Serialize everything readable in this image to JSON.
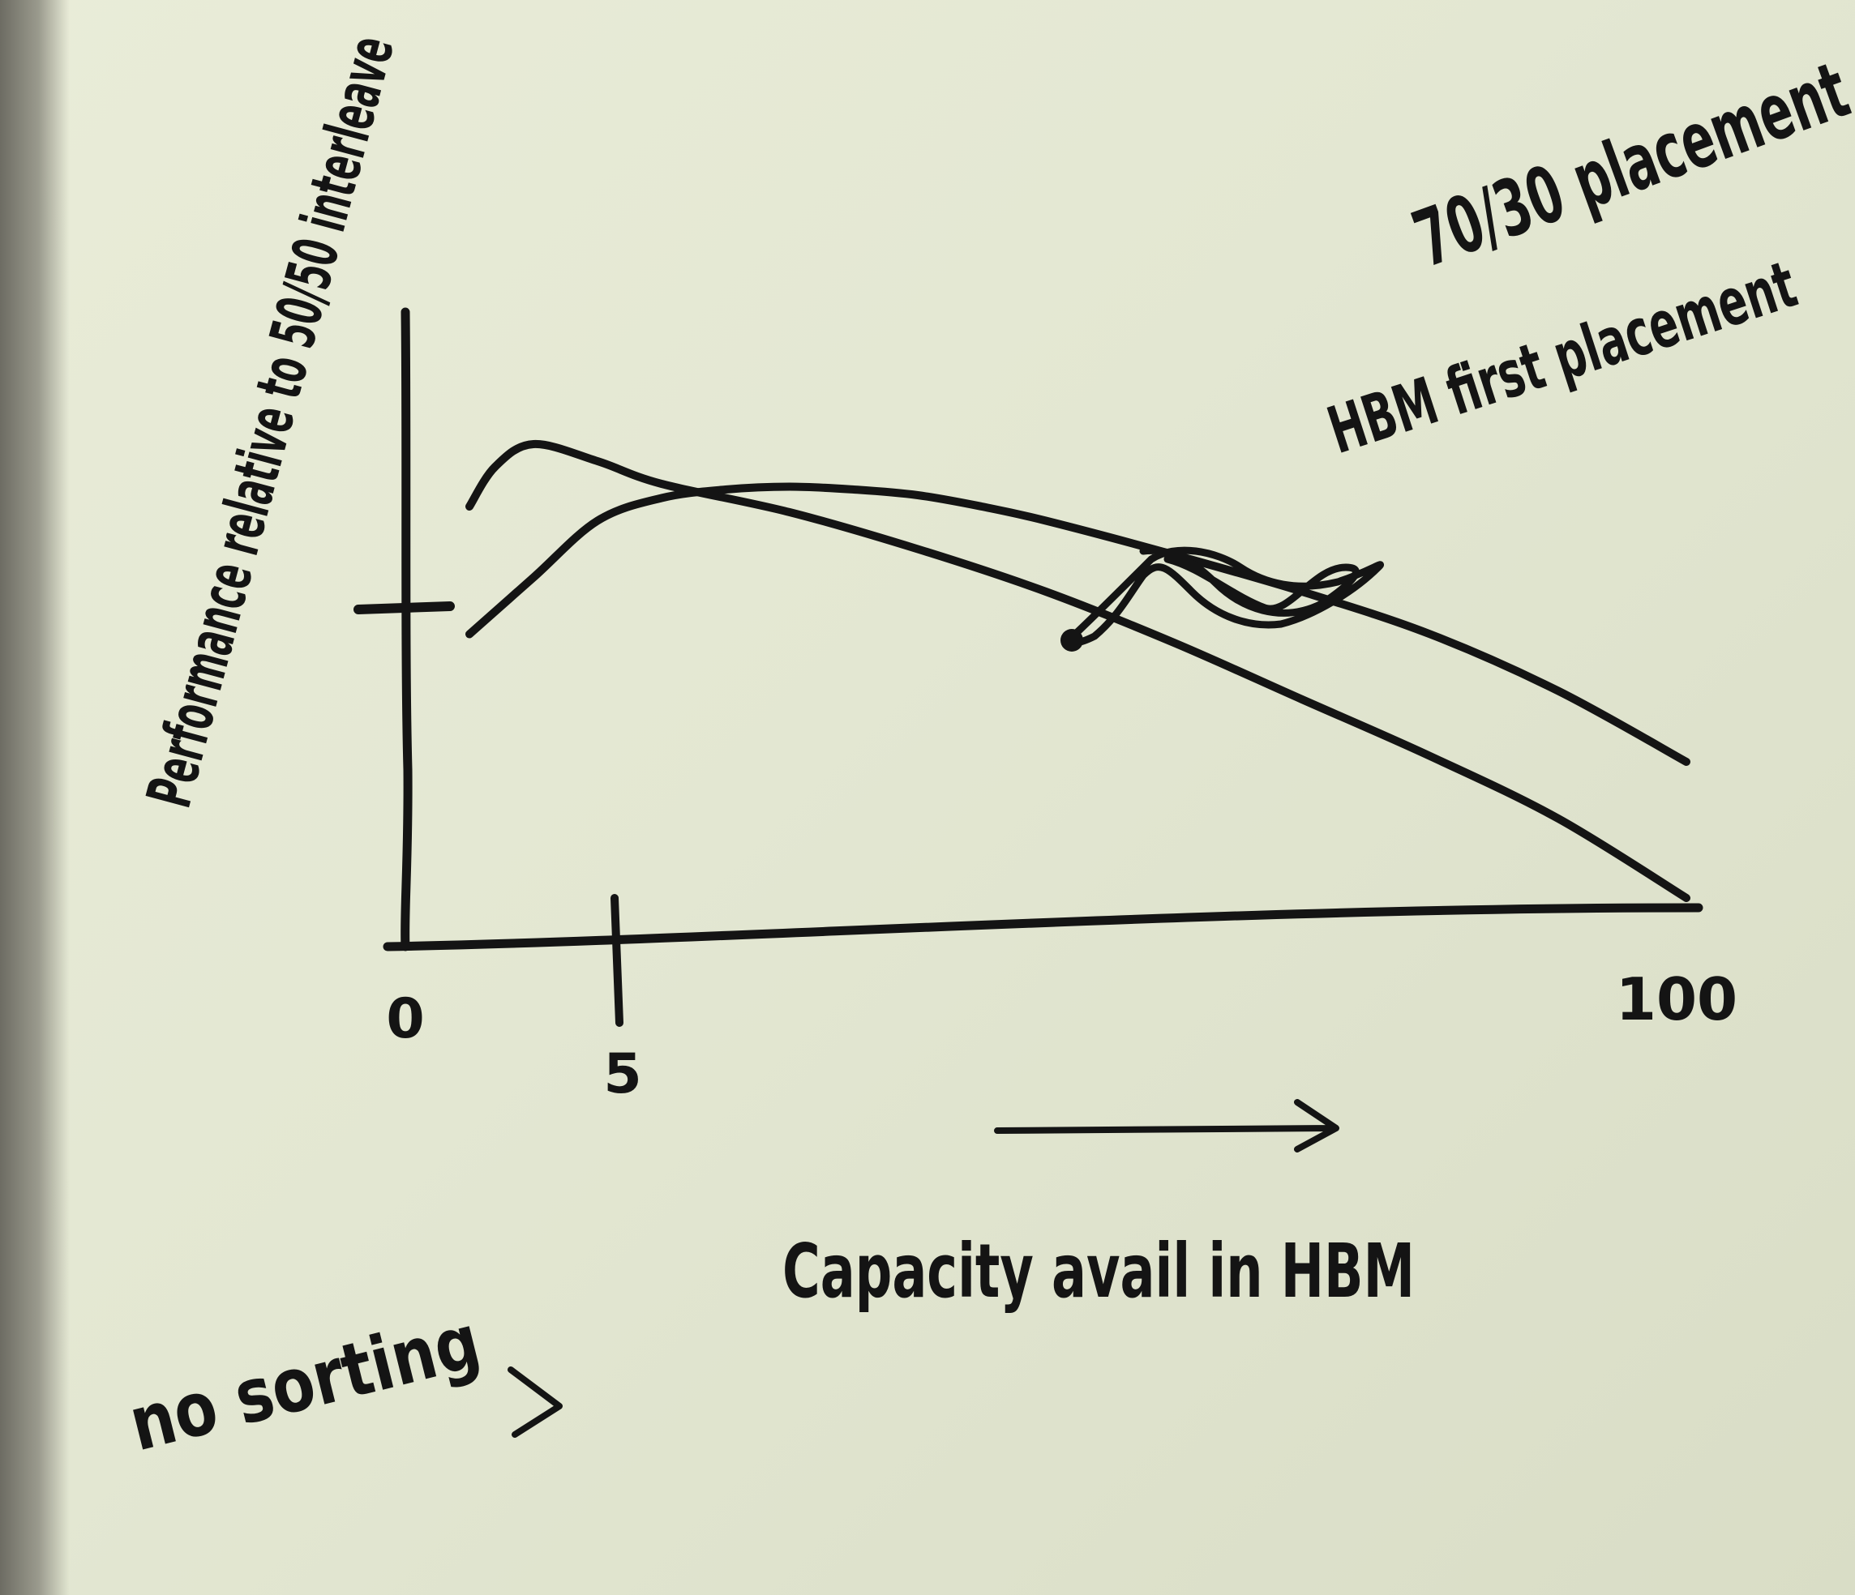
{
  "chart_data": {
    "type": "line",
    "title": "",
    "xlabel": "Capacity avail in HBM",
    "ylabel": "Performance relative to 50/50 interleave",
    "x_tick_labels": [
      "0",
      "5",
      "100"
    ],
    "xlim": [
      0,
      100
    ],
    "ylim": [
      0,
      2
    ],
    "grid": false,
    "legend": "right",
    "series": [
      {
        "name": "70/30 placement",
        "x": [
          5,
          10,
          15,
          20,
          25,
          30,
          35,
          40,
          45,
          50,
          60,
          70,
          80,
          90,
          100
        ],
        "y": [
          1.05,
          1.25,
          1.45,
          1.53,
          1.56,
          1.57,
          1.56,
          1.54,
          1.5,
          1.45,
          1.33,
          1.2,
          1.05,
          0.85,
          0.6
        ]
      },
      {
        "name": "HBM first placement",
        "x": [
          5,
          7,
          10,
          15,
          20,
          30,
          40,
          50,
          60,
          70,
          80,
          90,
          100
        ],
        "y": [
          1.5,
          1.64,
          1.72,
          1.66,
          1.58,
          1.48,
          1.35,
          1.2,
          1.02,
          0.82,
          0.62,
          0.4,
          0.12
        ]
      }
    ],
    "annotations": [
      "no sorting"
    ]
  }
}
